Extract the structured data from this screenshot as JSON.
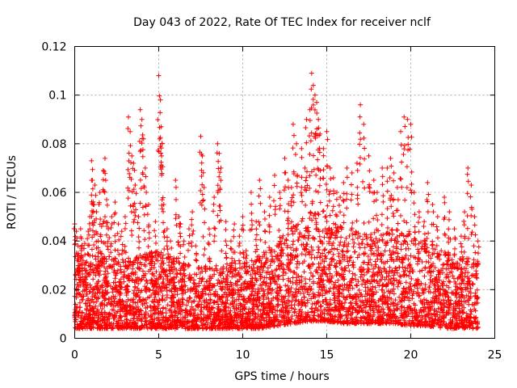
{
  "chart_data": {
    "type": "scatter",
    "title": "Day 043 of 2022, Rate Of TEC Index for receiver nclf",
    "xlabel": "GPS time / hours",
    "ylabel": "ROTI / TECUs",
    "xlim": [
      0,
      25
    ],
    "ylim": [
      0,
      0.12
    ],
    "xticks": [
      0,
      5,
      10,
      15,
      20,
      25
    ],
    "yticks": [
      0,
      0.02,
      0.04,
      0.06,
      0.08,
      0.1,
      0.12
    ],
    "xtick_labels": [
      "0",
      "5",
      "10",
      "15",
      "20",
      "25"
    ],
    "ytick_labels": [
      "0",
      "0.02",
      "0.04",
      "0.06",
      "0.08",
      "0.1",
      "0.12"
    ],
    "grid": true,
    "marker": "+",
    "color": "#ff0000",
    "series": [
      {
        "x": [
          0.0,
          0.1,
          0.2,
          0.25,
          0.3,
          0.35,
          0.4,
          0.5,
          0.6,
          0.7,
          0.8,
          0.9,
          1.0,
          1.05,
          1.1,
          1.2,
          1.3,
          1.4,
          1.5,
          1.6,
          1.7,
          1.8,
          1.9,
          2.0,
          2.2,
          2.4,
          2.6,
          2.8,
          3.0,
          3.2,
          3.3,
          3.4,
          3.5,
          3.6,
          3.8,
          3.9,
          4.0,
          4.1,
          4.2,
          4.4,
          4.6,
          4.8,
          5.0,
          5.1,
          5.15,
          5.2,
          5.3,
          5.5,
          5.7,
          5.9,
          6.0,
          6.2,
          6.3,
          6.5,
          6.8,
          7.0,
          7.2,
          7.5,
          7.6,
          7.7,
          8.0,
          8.3,
          8.5,
          8.6,
          8.7,
          9.0,
          9.3,
          9.5,
          9.8,
          10.0,
          10.2,
          10.5,
          10.8,
          11.0,
          11.3,
          11.6,
          11.9,
          12.2,
          12.5,
          12.7,
          12.9,
          13.0,
          13.2,
          13.5,
          13.7,
          13.8,
          14.0,
          14.1,
          14.2,
          14.3,
          14.4,
          14.5,
          14.6,
          14.8,
          15.0,
          15.2,
          15.4,
          15.6,
          15.8,
          16.0,
          16.2,
          16.5,
          16.8,
          17.0,
          17.2,
          17.5,
          17.8,
          18.0,
          18.3,
          18.6,
          18.8,
          19.0,
          19.2,
          19.4,
          19.6,
          19.8,
          20.0,
          20.2,
          20.5,
          20.8,
          21.0,
          21.3,
          21.6,
          22.0,
          22.3,
          22.6,
          23.0,
          23.2,
          23.4,
          23.6,
          23.8,
          24.0
        ],
        "y": [
          0.047,
          0.044,
          0.038,
          0.034,
          0.03,
          0.045,
          0.041,
          0.032,
          0.039,
          0.028,
          0.044,
          0.05,
          0.073,
          0.065,
          0.055,
          0.063,
          0.052,
          0.04,
          0.06,
          0.046,
          0.069,
          0.074,
          0.057,
          0.045,
          0.05,
          0.056,
          0.047,
          0.044,
          0.05,
          0.091,
          0.085,
          0.075,
          0.072,
          0.063,
          0.05,
          0.094,
          0.09,
          0.082,
          0.07,
          0.055,
          0.035,
          0.048,
          0.108,
          0.098,
          0.087,
          0.08,
          0.055,
          0.045,
          0.04,
          0.033,
          0.065,
          0.05,
          0.047,
          0.04,
          0.045,
          0.052,
          0.038,
          0.083,
          0.075,
          0.062,
          0.045,
          0.058,
          0.08,
          0.076,
          0.07,
          0.048,
          0.04,
          0.047,
          0.042,
          0.05,
          0.036,
          0.06,
          0.048,
          0.065,
          0.052,
          0.058,
          0.067,
          0.06,
          0.074,
          0.065,
          0.062,
          0.088,
          0.08,
          0.078,
          0.07,
          0.09,
          0.094,
          0.109,
          0.104,
          0.1,
          0.097,
          0.09,
          0.084,
          0.078,
          0.085,
          0.07,
          0.066,
          0.06,
          0.058,
          0.064,
          0.07,
          0.068,
          0.072,
          0.096,
          0.088,
          0.075,
          0.065,
          0.06,
          0.07,
          0.07,
          0.074,
          0.068,
          0.062,
          0.085,
          0.091,
          0.09,
          0.088,
          0.06,
          0.052,
          0.048,
          0.064,
          0.055,
          0.05,
          0.058,
          0.052,
          0.045,
          0.042,
          0.052,
          0.07,
          0.063,
          0.05,
          0.04
        ]
      }
    ],
    "density_envelope": {
      "hours": [
        0,
        1,
        2,
        3,
        4,
        5,
        6,
        7,
        8,
        9,
        10,
        11,
        12,
        13,
        14,
        15,
        16,
        17,
        18,
        19,
        20,
        21,
        22,
        23,
        24
      ],
      "typical_max": [
        0.03,
        0.032,
        0.034,
        0.033,
        0.035,
        0.036,
        0.032,
        0.03,
        0.03,
        0.031,
        0.032,
        0.034,
        0.04,
        0.048,
        0.052,
        0.05,
        0.045,
        0.044,
        0.042,
        0.046,
        0.044,
        0.04,
        0.036,
        0.034,
        0.032
      ],
      "typical_min": [
        0.004,
        0.004,
        0.004,
        0.004,
        0.004,
        0.004,
        0.004,
        0.004,
        0.004,
        0.004,
        0.004,
        0.004,
        0.005,
        0.006,
        0.007,
        0.007,
        0.006,
        0.006,
        0.006,
        0.006,
        0.005,
        0.005,
        0.004,
        0.004,
        0.004
      ]
    }
  }
}
